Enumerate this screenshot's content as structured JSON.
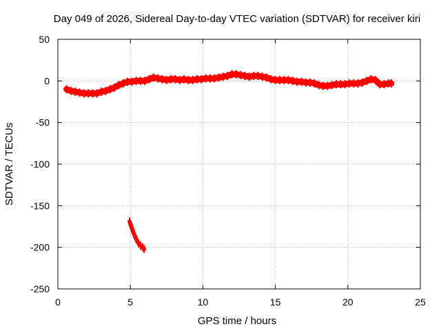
{
  "chart_data": {
    "type": "scatter",
    "title": "Day 049 of 2026, Sidereal Day-to-day VTEC variation (SDTVAR) for receiver kiri",
    "xlabel": "GPS time / hours",
    "ylabel": "SDTVAR / TECUs",
    "xlim": [
      0,
      25
    ],
    "ylim": [
      -250,
      50
    ],
    "xticks": [
      0,
      5,
      10,
      15,
      20,
      25
    ],
    "yticks": [
      50,
      0,
      -50,
      -100,
      -150,
      -200,
      -250
    ],
    "grid": true,
    "color": "#ff0000",
    "series": [
      {
        "points": [
          [
            0.6,
            -10
          ],
          [
            0.9,
            -12
          ],
          [
            1.2,
            -13
          ],
          [
            1.5,
            -14
          ],
          [
            1.8,
            -15
          ],
          [
            2.1,
            -15
          ],
          [
            2.4,
            -15
          ],
          [
            2.7,
            -15
          ],
          [
            3.0,
            -13
          ],
          [
            3.3,
            -12
          ],
          [
            3.6,
            -10
          ],
          [
            3.9,
            -8
          ],
          [
            4.2,
            -5
          ],
          [
            4.5,
            -3
          ],
          [
            4.8,
            -1
          ],
          [
            5.1,
            -1
          ],
          [
            5.4,
            0
          ],
          [
            5.7,
            0
          ],
          [
            6.0,
            0
          ],
          [
            6.3,
            2
          ],
          [
            6.6,
            4
          ],
          [
            6.9,
            3
          ],
          [
            7.2,
            2
          ],
          [
            7.5,
            1
          ],
          [
            7.8,
            2
          ],
          [
            8.1,
            2
          ],
          [
            8.4,
            1
          ],
          [
            8.7,
            2
          ],
          [
            9.0,
            1
          ],
          [
            9.3,
            1
          ],
          [
            9.6,
            2
          ],
          [
            9.9,
            2
          ],
          [
            10.2,
            3
          ],
          [
            10.5,
            3
          ],
          [
            10.8,
            3
          ],
          [
            11.1,
            4
          ],
          [
            11.4,
            5
          ],
          [
            11.7,
            6
          ],
          [
            12.0,
            8
          ],
          [
            12.3,
            8
          ],
          [
            12.6,
            7
          ],
          [
            12.9,
            6
          ],
          [
            13.2,
            5
          ],
          [
            13.5,
            6
          ],
          [
            13.8,
            6
          ],
          [
            14.1,
            5
          ],
          [
            14.4,
            4
          ],
          [
            14.7,
            2
          ],
          [
            15.0,
            1
          ],
          [
            15.3,
            1
          ],
          [
            15.6,
            1
          ],
          [
            15.9,
            1
          ],
          [
            16.2,
            0
          ],
          [
            16.5,
            -1
          ],
          [
            16.8,
            -1
          ],
          [
            17.1,
            -2
          ],
          [
            17.4,
            -2
          ],
          [
            17.7,
            -3
          ],
          [
            18.0,
            -5
          ],
          [
            18.3,
            -6
          ],
          [
            18.6,
            -6
          ],
          [
            18.9,
            -5
          ],
          [
            19.2,
            -4
          ],
          [
            19.5,
            -4
          ],
          [
            19.8,
            -4
          ],
          [
            20.1,
            -3
          ],
          [
            20.4,
            -3
          ],
          [
            20.7,
            -3
          ],
          [
            21.0,
            -2
          ],
          [
            21.3,
            0
          ],
          [
            21.6,
            2
          ],
          [
            21.9,
            1
          ],
          [
            22.2,
            -4
          ],
          [
            22.5,
            -4
          ],
          [
            22.8,
            -3
          ],
          [
            23.0,
            -3
          ]
        ]
      },
      {
        "points": [
          [
            4.95,
            -169
          ],
          [
            5.1,
            -177
          ],
          [
            5.25,
            -184
          ],
          [
            5.4,
            -190
          ],
          [
            5.55,
            -195
          ],
          [
            5.7,
            -198
          ],
          [
            5.85,
            -200
          ],
          [
            5.95,
            -202
          ]
        ]
      }
    ]
  }
}
